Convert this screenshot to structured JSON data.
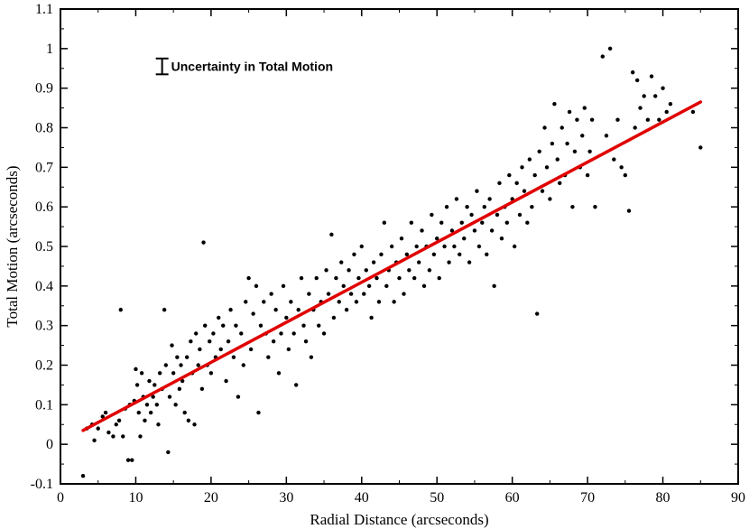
{
  "chart_data": {
    "type": "scatter",
    "title": "",
    "xlabel": "Radial Distance (arcseconds)",
    "ylabel": "Total Motion (arcseconds)",
    "xlim": [
      0,
      90
    ],
    "ylim": [
      -0.1,
      1.1
    ],
    "xticks": [
      0,
      10,
      20,
      30,
      40,
      50,
      60,
      70,
      80,
      90
    ],
    "yticks": [
      -0.1,
      0,
      0.1,
      0.2,
      0.3,
      0.4,
      0.5,
      0.6,
      0.7,
      0.8,
      0.9,
      1,
      1.1
    ],
    "xtick_labels": [
      "0",
      "10",
      "20",
      "30",
      "40",
      "50",
      "60",
      "70",
      "80",
      "90"
    ],
    "ytick_labels": [
      "-0.1",
      "0",
      "0.1",
      "0.2",
      "0.3",
      "0.4",
      "0.5",
      "0.6",
      "0.7",
      "0.8",
      "0.9",
      "1",
      "1.1"
    ],
    "grid": false,
    "annotation": {
      "text": "Uncertainty in Total Motion",
      "errorbar": {
        "x": 13.5,
        "y_low": 0.935,
        "y_high": 0.975
      }
    },
    "fit_line": {
      "color": "#e00000",
      "x": [
        3,
        85
      ],
      "y": [
        0.035,
        0.865
      ]
    },
    "point_color": "#000000",
    "series": [
      {
        "type": "scatter",
        "points": [
          [
            3,
            -0.08
          ],
          [
            3.5,
            0.04
          ],
          [
            4.2,
            0.05
          ],
          [
            4.5,
            0.01
          ],
          [
            5,
            0.04
          ],
          [
            5.6,
            0.07
          ],
          [
            6,
            0.08
          ],
          [
            6.4,
            0.03
          ],
          [
            7,
            0.02
          ],
          [
            7.4,
            0.05
          ],
          [
            7.8,
            0.06
          ],
          [
            8,
            0.34
          ],
          [
            8.3,
            0.02
          ],
          [
            8.6,
            0.09
          ],
          [
            9,
            -0.04
          ],
          [
            9.2,
            0.1
          ],
          [
            9.5,
            -0.04
          ],
          [
            9.8,
            0.11
          ],
          [
            10,
            0.19
          ],
          [
            10.2,
            0.15
          ],
          [
            10.4,
            0.08
          ],
          [
            10.6,
            0.02
          ],
          [
            10.8,
            0.18
          ],
          [
            11,
            0.12
          ],
          [
            11.2,
            0.06
          ],
          [
            11.5,
            0.1
          ],
          [
            11.8,
            0.16
          ],
          [
            12,
            0.08
          ],
          [
            12.3,
            0.12
          ],
          [
            12.5,
            0.15
          ],
          [
            12.8,
            0.1
          ],
          [
            13,
            0.05
          ],
          [
            13.2,
            0.18
          ],
          [
            13.5,
            0.14
          ],
          [
            13.8,
            0.34
          ],
          [
            14,
            0.2
          ],
          [
            14.3,
            -0.02
          ],
          [
            14.5,
            0.12
          ],
          [
            14.8,
            0.25
          ],
          [
            15,
            0.18
          ],
          [
            15.3,
            0.1
          ],
          [
            15.5,
            0.22
          ],
          [
            15.8,
            0.14
          ],
          [
            16,
            0.2
          ],
          [
            16.2,
            0.16
          ],
          [
            16.5,
            0.08
          ],
          [
            16.8,
            0.22
          ],
          [
            17,
            0.06
          ],
          [
            17.3,
            0.26
          ],
          [
            17.5,
            0.18
          ],
          [
            17.8,
            0.05
          ],
          [
            18,
            0.28
          ],
          [
            18.3,
            0.2
          ],
          [
            18.5,
            0.24
          ],
          [
            18.8,
            0.14
          ],
          [
            19,
            0.51
          ],
          [
            19.2,
            0.3
          ],
          [
            19.5,
            0.2
          ],
          [
            19.8,
            0.26
          ],
          [
            20,
            0.18
          ],
          [
            20.3,
            0.28
          ],
          [
            20.6,
            0.22
          ],
          [
            21,
            0.32
          ],
          [
            21.3,
            0.24
          ],
          [
            21.6,
            0.3
          ],
          [
            22,
            0.16
          ],
          [
            22.3,
            0.26
          ],
          [
            22.6,
            0.34
          ],
          [
            23,
            0.22
          ],
          [
            23.3,
            0.3
          ],
          [
            23.6,
            0.12
          ],
          [
            24,
            0.28
          ],
          [
            24.3,
            0.2
          ],
          [
            24.6,
            0.36
          ],
          [
            25,
            0.42
          ],
          [
            25.3,
            0.24
          ],
          [
            25.6,
            0.33
          ],
          [
            26,
            0.4
          ],
          [
            26.3,
            0.08
          ],
          [
            26.6,
            0.3
          ],
          [
            27,
            0.36
          ],
          [
            27.3,
            0.28
          ],
          [
            27.6,
            0.22
          ],
          [
            28,
            0.38
          ],
          [
            28.3,
            0.26
          ],
          [
            28.6,
            0.34
          ],
          [
            29,
            0.18
          ],
          [
            29.3,
            0.28
          ],
          [
            29.6,
            0.4
          ],
          [
            30,
            0.32
          ],
          [
            30.3,
            0.24
          ],
          [
            30.6,
            0.36
          ],
          [
            31,
            0.28
          ],
          [
            31.3,
            0.15
          ],
          [
            31.6,
            0.34
          ],
          [
            32,
            0.42
          ],
          [
            32.3,
            0.3
          ],
          [
            32.6,
            0.26
          ],
          [
            33,
            0.38
          ],
          [
            33.3,
            0.22
          ],
          [
            33.6,
            0.34
          ],
          [
            34,
            0.42
          ],
          [
            34.3,
            0.3
          ],
          [
            34.6,
            0.36
          ],
          [
            35,
            0.28
          ],
          [
            35.3,
            0.44
          ],
          [
            35.6,
            0.38
          ],
          [
            36,
            0.53
          ],
          [
            36.3,
            0.32
          ],
          [
            36.6,
            0.42
          ],
          [
            37,
            0.36
          ],
          [
            37.3,
            0.46
          ],
          [
            37.6,
            0.4
          ],
          [
            38,
            0.34
          ],
          [
            38.3,
            0.44
          ],
          [
            38.6,
            0.38
          ],
          [
            39,
            0.48
          ],
          [
            39.3,
            0.36
          ],
          [
            39.6,
            0.42
          ],
          [
            40,
            0.5
          ],
          [
            40.3,
            0.38
          ],
          [
            40.6,
            0.44
          ],
          [
            41,
            0.4
          ],
          [
            41.3,
            0.32
          ],
          [
            41.6,
            0.46
          ],
          [
            42,
            0.42
          ],
          [
            42.3,
            0.36
          ],
          [
            42.6,
            0.48
          ],
          [
            43,
            0.56
          ],
          [
            43.3,
            0.4
          ],
          [
            43.6,
            0.44
          ],
          [
            44,
            0.5
          ],
          [
            44.3,
            0.36
          ],
          [
            44.6,
            0.46
          ],
          [
            45,
            0.42
          ],
          [
            45.3,
            0.52
          ],
          [
            45.6,
            0.38
          ],
          [
            46,
            0.48
          ],
          [
            46.3,
            0.44
          ],
          [
            46.6,
            0.56
          ],
          [
            47,
            0.42
          ],
          [
            47.3,
            0.5
          ],
          [
            47.6,
            0.46
          ],
          [
            48,
            0.54
          ],
          [
            48.3,
            0.4
          ],
          [
            48.6,
            0.5
          ],
          [
            49,
            0.44
          ],
          [
            49.3,
            0.58
          ],
          [
            49.6,
            0.48
          ],
          [
            50,
            0.52
          ],
          [
            50.3,
            0.42
          ],
          [
            50.6,
            0.56
          ],
          [
            51,
            0.5
          ],
          [
            51.3,
            0.6
          ],
          [
            51.6,
            0.46
          ],
          [
            52,
            0.54
          ],
          [
            52.3,
            0.5
          ],
          [
            52.6,
            0.62
          ],
          [
            53,
            0.48
          ],
          [
            53.3,
            0.56
          ],
          [
            53.6,
            0.52
          ],
          [
            54,
            0.6
          ],
          [
            54.3,
            0.46
          ],
          [
            54.6,
            0.58
          ],
          [
            55,
            0.54
          ],
          [
            55.3,
            0.64
          ],
          [
            55.6,
            0.5
          ],
          [
            56,
            0.56
          ],
          [
            56.3,
            0.6
          ],
          [
            56.6,
            0.48
          ],
          [
            57,
            0.62
          ],
          [
            57.3,
            0.54
          ],
          [
            57.6,
            0.4
          ],
          [
            58,
            0.58
          ],
          [
            58.3,
            0.66
          ],
          [
            58.6,
            0.52
          ],
          [
            59,
            0.6
          ],
          [
            59.3,
            0.56
          ],
          [
            59.6,
            0.68
          ],
          [
            60,
            0.62
          ],
          [
            60.3,
            0.5
          ],
          [
            60.6,
            0.66
          ],
          [
            61,
            0.58
          ],
          [
            61.3,
            0.7
          ],
          [
            61.6,
            0.64
          ],
          [
            62,
            0.56
          ],
          [
            62.3,
            0.72
          ],
          [
            62.6,
            0.6
          ],
          [
            63,
            0.68
          ],
          [
            63.3,
            0.33
          ],
          [
            63.6,
            0.74
          ],
          [
            64,
            0.64
          ],
          [
            64.3,
            0.8
          ],
          [
            64.6,
            0.7
          ],
          [
            65,
            0.62
          ],
          [
            65.3,
            0.76
          ],
          [
            65.6,
            0.86
          ],
          [
            66,
            0.72
          ],
          [
            66.3,
            0.66
          ],
          [
            66.6,
            0.8
          ],
          [
            67,
            0.68
          ],
          [
            67.3,
            0.76
          ],
          [
            67.6,
            0.84
          ],
          [
            68,
            0.6
          ],
          [
            68.3,
            0.74
          ],
          [
            68.6,
            0.82
          ],
          [
            69,
            0.7
          ],
          [
            69.3,
            0.78
          ],
          [
            69.6,
            0.85
          ],
          [
            70,
            0.68
          ],
          [
            70.3,
            0.74
          ],
          [
            70.6,
            0.82
          ],
          [
            71,
            0.6
          ],
          [
            72,
            0.98
          ],
          [
            72.5,
            0.78
          ],
          [
            73,
            1.0
          ],
          [
            73.5,
            0.72
          ],
          [
            74,
            0.82
          ],
          [
            74.5,
            0.7
          ],
          [
            75,
            0.68
          ],
          [
            75.5,
            0.59
          ],
          [
            76,
            0.94
          ],
          [
            76.3,
            0.8
          ],
          [
            76.6,
            0.92
          ],
          [
            77,
            0.85
          ],
          [
            77.5,
            0.88
          ],
          [
            78,
            0.82
          ],
          [
            78.5,
            0.93
          ],
          [
            79,
            0.88
          ],
          [
            79.5,
            0.82
          ],
          [
            80,
            0.9
          ],
          [
            80.5,
            0.84
          ],
          [
            81,
            0.86
          ],
          [
            84,
            0.84
          ],
          [
            85,
            0.75
          ]
        ]
      }
    ]
  }
}
